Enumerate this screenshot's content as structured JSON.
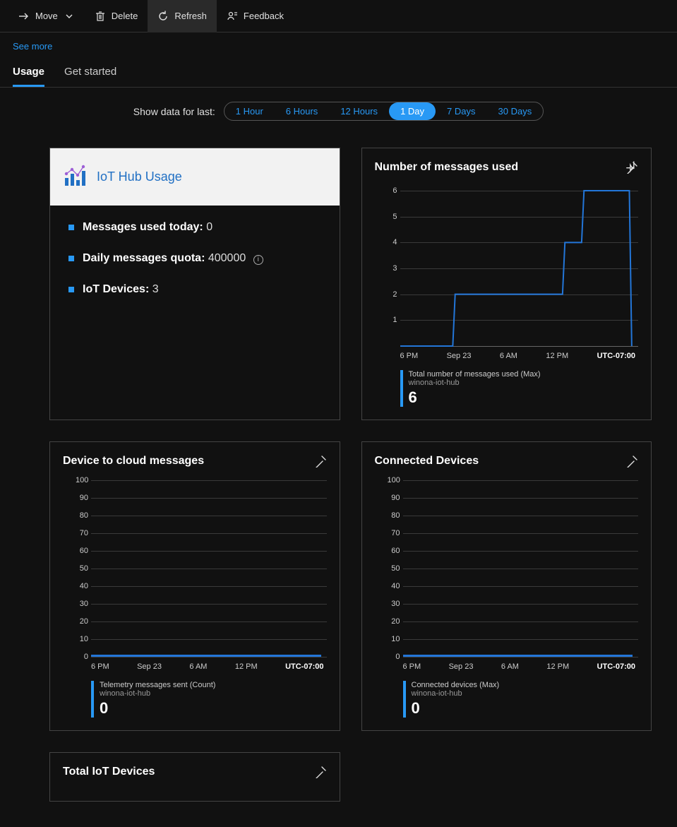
{
  "toolbar": {
    "move": "Move",
    "delete": "Delete",
    "refresh": "Refresh",
    "feedback": "Feedback"
  },
  "see_more": "See more",
  "tabs": {
    "usage": "Usage",
    "get_started": "Get started",
    "active": "usage"
  },
  "timerange": {
    "label": "Show data for last:",
    "options": [
      "1 Hour",
      "6 Hours",
      "12 Hours",
      "1 Day",
      "7 Days",
      "30 Days"
    ],
    "active": "1 Day"
  },
  "colors": {
    "accent": "#2899f5",
    "line": "#2376d8",
    "grid": "#3a3a3a",
    "card_border": "#444444",
    "background": "#111111",
    "text": "#e0e0e0"
  },
  "usage_card": {
    "title": "IoT Hub Usage",
    "rows": [
      {
        "label": "Messages used today",
        "value": "0",
        "info": false
      },
      {
        "label": "Daily messages quota",
        "value": "400000",
        "info": true
      },
      {
        "label": "IoT Devices",
        "value": "3",
        "info": false
      }
    ]
  },
  "charts": {
    "messages_used": {
      "type": "line-step",
      "title": "Number of messages used",
      "ylim": [
        0,
        6
      ],
      "ytick_step": 1,
      "yticks": [
        1,
        2,
        3,
        4,
        5,
        6
      ],
      "xlabels": [
        "6 PM",
        "Sep 23",
        "6 AM",
        "12 PM",
        "UTC-07:00"
      ],
      "series_color": "#2376d8",
      "line_width": 2,
      "points": [
        {
          "x": 0.0,
          "y": 0
        },
        {
          "x": 0.22,
          "y": 0
        },
        {
          "x": 0.23,
          "y": 2
        },
        {
          "x": 0.68,
          "y": 2
        },
        {
          "x": 0.69,
          "y": 4
        },
        {
          "x": 0.76,
          "y": 4
        },
        {
          "x": 0.77,
          "y": 6
        },
        {
          "x": 0.96,
          "y": 6
        },
        {
          "x": 0.97,
          "y": 0
        }
      ],
      "footer": {
        "metric": "Total number of messages used (Max)",
        "resource": "winona-iot-hub",
        "value": "6"
      }
    },
    "device_to_cloud": {
      "type": "line",
      "title": "Device to cloud messages",
      "ylim": [
        0,
        100
      ],
      "ytick_step": 10,
      "yticks": [
        0,
        10,
        20,
        30,
        40,
        50,
        60,
        70,
        80,
        90,
        100
      ],
      "xlabels": [
        "6 PM",
        "Sep 23",
        "6 AM",
        "12 PM",
        "UTC-07:00"
      ],
      "series_color": "#2376d8",
      "flat_value": 0,
      "footer": {
        "metric": "Telemetry messages sent (Count)",
        "resource": "winona-iot-hub",
        "value": "0"
      }
    },
    "connected_devices": {
      "type": "line",
      "title": "Connected Devices",
      "ylim": [
        0,
        100
      ],
      "ytick_step": 10,
      "yticks": [
        0,
        10,
        20,
        30,
        40,
        50,
        60,
        70,
        80,
        90,
        100
      ],
      "xlabels": [
        "6 PM",
        "Sep 23",
        "6 AM",
        "12 PM",
        "UTC-07:00"
      ],
      "series_color": "#2376d8",
      "flat_value": 0,
      "footer": {
        "metric": "Connected devices (Max)",
        "resource": "winona-iot-hub",
        "value": "0"
      }
    },
    "total_devices": {
      "title": "Total IoT Devices"
    }
  }
}
